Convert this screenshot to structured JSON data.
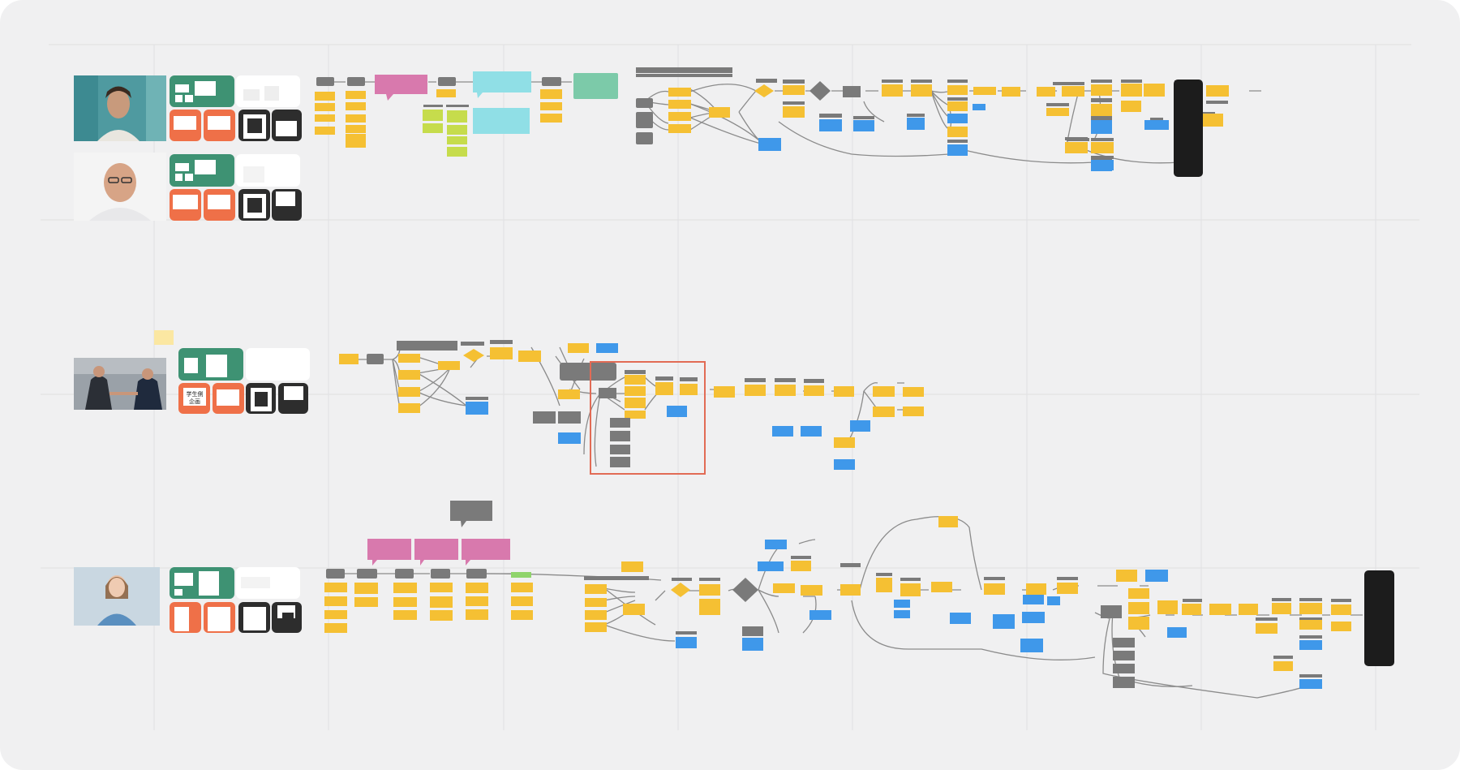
{
  "board": {
    "background": "#f0f0f1",
    "colors": {
      "sticky_yellow": "#f5c033",
      "sticky_blue": "#3f98ea",
      "sticky_gray": "#7a7a7a",
      "sticky_lime": "#c6dc4c",
      "speech_pink": "#d879ad",
      "speech_cyan": "#90dfe6",
      "note_teal": "#7ccaa9",
      "persona_green": "#3e9273",
      "persona_orange": "#ef7048",
      "persona_dark": "#2d2d2d",
      "end_card": "#1c1c1c",
      "highlight_frame": "#e26b55",
      "connector": "#8b8b8b"
    }
  },
  "lanes": [
    {
      "id": "lane-1",
      "persona": "persona-1",
      "photo_icon": "person-photo-icon"
    },
    {
      "id": "lane-2",
      "persona": "persona-2",
      "photo_icon": "person-photo-icon"
    },
    {
      "id": "lane-3",
      "persona": "persona-3",
      "photo_icon": "handshake-photo-icon"
    },
    {
      "id": "lane-4",
      "persona": "persona-4",
      "photo_icon": "person-photo-icon"
    }
  ],
  "persona_cards": {
    "lane3_orange_card_text": "学生側\n企画"
  },
  "end_cards": [
    {
      "id": "end-card-top"
    },
    {
      "id": "end-card-bottom"
    }
  ]
}
